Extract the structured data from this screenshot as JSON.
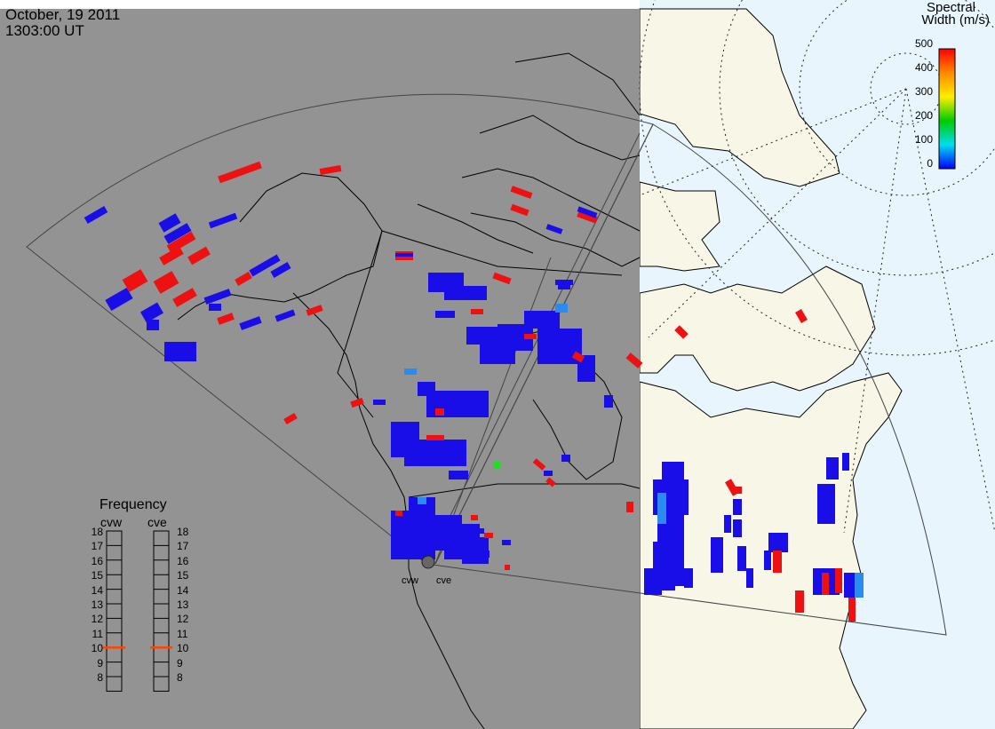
{
  "header": {
    "date": "October, 19 2011",
    "time": "1303:00 UT"
  },
  "colorbar": {
    "title_line1": "Spectral",
    "title_line2": "Width (m/s)",
    "ticks": [
      "500",
      "400",
      "300",
      "200",
      "100",
      "0"
    ],
    "colors": [
      "#ff0000",
      "#ff8800",
      "#ffee00",
      "#00cc00",
      "#00ddee",
      "#0000ff"
    ]
  },
  "radars": [
    {
      "code": "cvw",
      "label": "cvw"
    },
    {
      "code": "cve",
      "label": "cve"
    }
  ],
  "frequency": {
    "title": "Frequency",
    "left_label": "cvw",
    "right_label": "cve",
    "scale": [
      "18",
      "17",
      "16",
      "15",
      "14",
      "13",
      "12",
      "11",
      "10",
      "9",
      "8"
    ],
    "cvw_value": 10.5,
    "cve_value": 10.5,
    "marker_color": "#ff4400"
  },
  "colors": {
    "night": "#939393",
    "day_land": "#f7f6e7",
    "day_ocean": "#e8f5fd",
    "low_width": "#1a0ee8",
    "high_width": "#ee1111"
  }
}
